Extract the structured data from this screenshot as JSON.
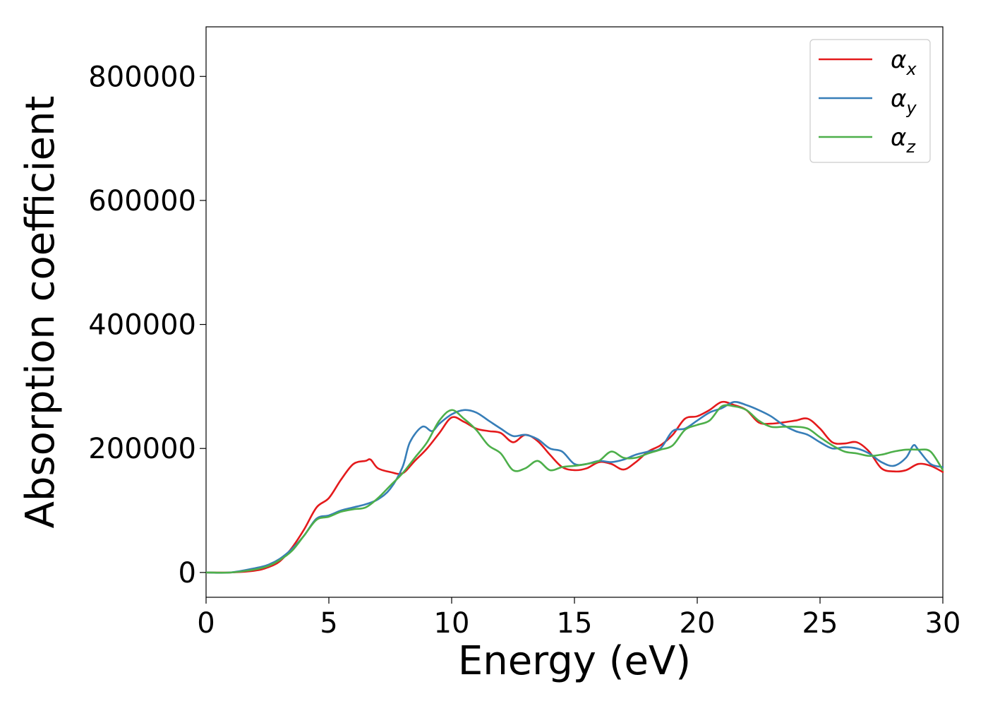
{
  "chart_data": {
    "type": "line",
    "xlabel": "Energy (eV)",
    "ylabel": "Absorption coefficient",
    "xlim": [
      0,
      30
    ],
    "ylim": [
      -40000,
      880000
    ],
    "xticks": [
      0,
      5,
      10,
      15,
      20,
      25,
      30
    ],
    "yticks": [
      0,
      200000,
      400000,
      600000,
      800000
    ],
    "xtick_labels": [
      "0",
      "5",
      "10",
      "15",
      "20",
      "25",
      "30"
    ],
    "ytick_labels": [
      "0",
      "200000",
      "400000",
      "600000",
      "800000"
    ],
    "grid": false,
    "legend_position": "top-right",
    "series": [
      {
        "name": "α_x",
        "label_main": "α",
        "label_sub": "x",
        "color": "#e41a1c",
        "x": [
          0,
          1,
          2,
          2.5,
          3,
          3.5,
          4,
          4.5,
          5,
          5.5,
          6,
          6.5,
          6.7,
          7,
          7.5,
          8,
          8.5,
          9,
          9.5,
          10,
          10.5,
          11,
          11.5,
          12,
          12.5,
          13,
          13.5,
          14,
          14.5,
          15,
          15.5,
          16,
          16.5,
          17,
          17.5,
          18,
          18.5,
          19,
          19.5,
          20,
          20.5,
          21,
          21.5,
          22,
          22.5,
          23,
          23.5,
          24,
          24.5,
          25,
          25.5,
          26,
          26.5,
          27,
          27.5,
          28,
          28.5,
          29,
          29.5,
          30
        ],
        "values": [
          0,
          0,
          3000,
          8000,
          18000,
          40000,
          70000,
          105000,
          120000,
          150000,
          175000,
          180000,
          182000,
          168000,
          162000,
          160000,
          180000,
          200000,
          225000,
          250000,
          243000,
          232000,
          228000,
          225000,
          210000,
          222000,
          212000,
          190000,
          170000,
          165000,
          168000,
          178000,
          175000,
          166000,
          178000,
          195000,
          205000,
          222000,
          248000,
          252000,
          262000,
          275000,
          270000,
          262000,
          242000,
          240000,
          242000,
          245000,
          248000,
          232000,
          210000,
          208000,
          210000,
          195000,
          168000,
          163000,
          165000,
          175000,
          172000,
          162000
        ]
      },
      {
        "name": "α_y",
        "label_main": "α",
        "label_sub": "y",
        "color": "#377eb8",
        "x": [
          0,
          1,
          2,
          2.5,
          3,
          3.5,
          4,
          4.5,
          5,
          5.5,
          6,
          6.5,
          7,
          7.5,
          8,
          8.3,
          8.8,
          9.2,
          9.5,
          10,
          10.5,
          11,
          11.5,
          12,
          12.5,
          13,
          13.5,
          14,
          14.5,
          15,
          15.5,
          16,
          16.5,
          17,
          17.5,
          18,
          18.5,
          19,
          19.5,
          20,
          20.5,
          21,
          21.5,
          22,
          22.5,
          23,
          23.5,
          24,
          24.5,
          25,
          25.5,
          26,
          26.5,
          27,
          27.5,
          28,
          28.5,
          28.8,
          29,
          29.5,
          30
        ],
        "values": [
          0,
          0,
          7000,
          12000,
          22000,
          38000,
          60000,
          87000,
          92000,
          100000,
          105000,
          110000,
          118000,
          135000,
          170000,
          210000,
          235000,
          228000,
          240000,
          255000,
          262000,
          258000,
          245000,
          232000,
          220000,
          222000,
          215000,
          200000,
          195000,
          175000,
          175000,
          180000,
          178000,
          182000,
          190000,
          195000,
          200000,
          228000,
          232000,
          245000,
          258000,
          265000,
          275000,
          270000,
          262000,
          252000,
          238000,
          228000,
          222000,
          210000,
          200000,
          202000,
          200000,
          192000,
          178000,
          172000,
          185000,
          205000,
          198000,
          175000,
          170000
        ]
      },
      {
        "name": "α_z",
        "label_main": "α",
        "label_sub": "z",
        "color": "#4daf4a",
        "x": [
          0,
          1,
          2,
          2.5,
          3,
          3.5,
          4,
          4.5,
          5,
          5.5,
          6,
          6.5,
          7,
          7.5,
          8,
          8.5,
          9,
          9.5,
          10,
          10.5,
          11,
          11.5,
          12,
          12.5,
          13,
          13.5,
          14,
          14.5,
          15,
          15.5,
          16,
          16.5,
          17,
          17.5,
          18,
          18.5,
          19,
          19.5,
          20,
          20.5,
          21,
          21.5,
          22,
          22.5,
          23,
          23.5,
          24,
          24.5,
          25,
          25.5,
          26,
          26.5,
          27,
          27.5,
          28,
          28.5,
          29,
          29.5,
          30
        ],
        "values": [
          0,
          0,
          5000,
          10000,
          20000,
          35000,
          60000,
          85000,
          90000,
          98000,
          102000,
          105000,
          120000,
          140000,
          160000,
          185000,
          210000,
          245000,
          262000,
          248000,
          230000,
          205000,
          192000,
          165000,
          168000,
          180000,
          165000,
          170000,
          172000,
          175000,
          180000,
          195000,
          185000,
          185000,
          192000,
          198000,
          205000,
          230000,
          238000,
          245000,
          268000,
          268000,
          262000,
          245000,
          235000,
          235000,
          235000,
          232000,
          218000,
          205000,
          195000,
          192000,
          188000,
          190000,
          195000,
          198000,
          198000,
          195000,
          165000
        ]
      }
    ]
  }
}
